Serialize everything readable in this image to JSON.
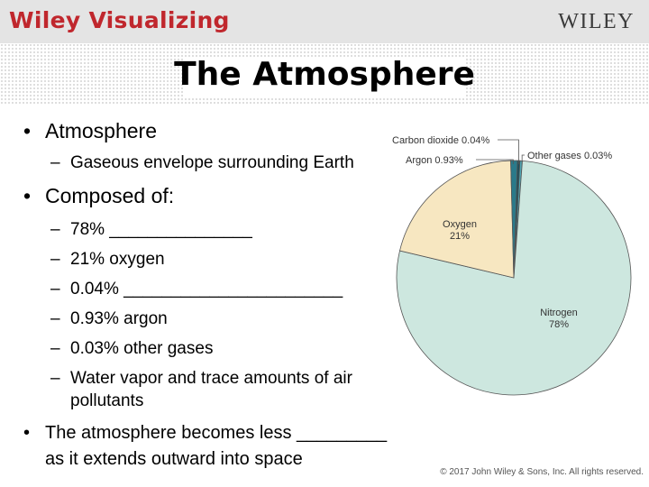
{
  "header": {
    "brand": "Wiley Visualizing",
    "logo": "WILEY"
  },
  "slide": {
    "title": "The Atmosphere",
    "bullets": [
      {
        "text": "Atmosphere"
      },
      {
        "sub": "Gaseous envelope surrounding Earth"
      },
      {
        "text": "Composed of:"
      },
      {
        "subs": [
          "78% _______________",
          "21% oxygen",
          "0.04% _______________________",
          "0.93% argon",
          "0.03% other gases",
          "Water vapor and trace amounts of air",
          "pollutants"
        ]
      },
      {
        "text": "The atmosphere becomes less _________"
      },
      {
        "text_cont": "as it extends outward into space"
      }
    ]
  },
  "chart_data": {
    "type": "pie",
    "slices": [
      {
        "label": "Nitrogen",
        "value_label": "78%",
        "value": 78,
        "color": "#cde7df"
      },
      {
        "label": "Oxygen",
        "value_label": "21%",
        "value": 21,
        "color": "#f7e7c1"
      },
      {
        "label": "Argon 0.93%",
        "value": 0.93,
        "color": "#2a7a8a"
      },
      {
        "label": "Carbon dioxide 0.04%",
        "value": 0.04,
        "color": "#1c4f5b"
      },
      {
        "label": "Other gases 0.03%",
        "value": 0.03,
        "color": "#4fa7b5"
      }
    ]
  },
  "footer": {
    "copyright": "© 2017 John Wiley & Sons, Inc. All rights reserved."
  }
}
